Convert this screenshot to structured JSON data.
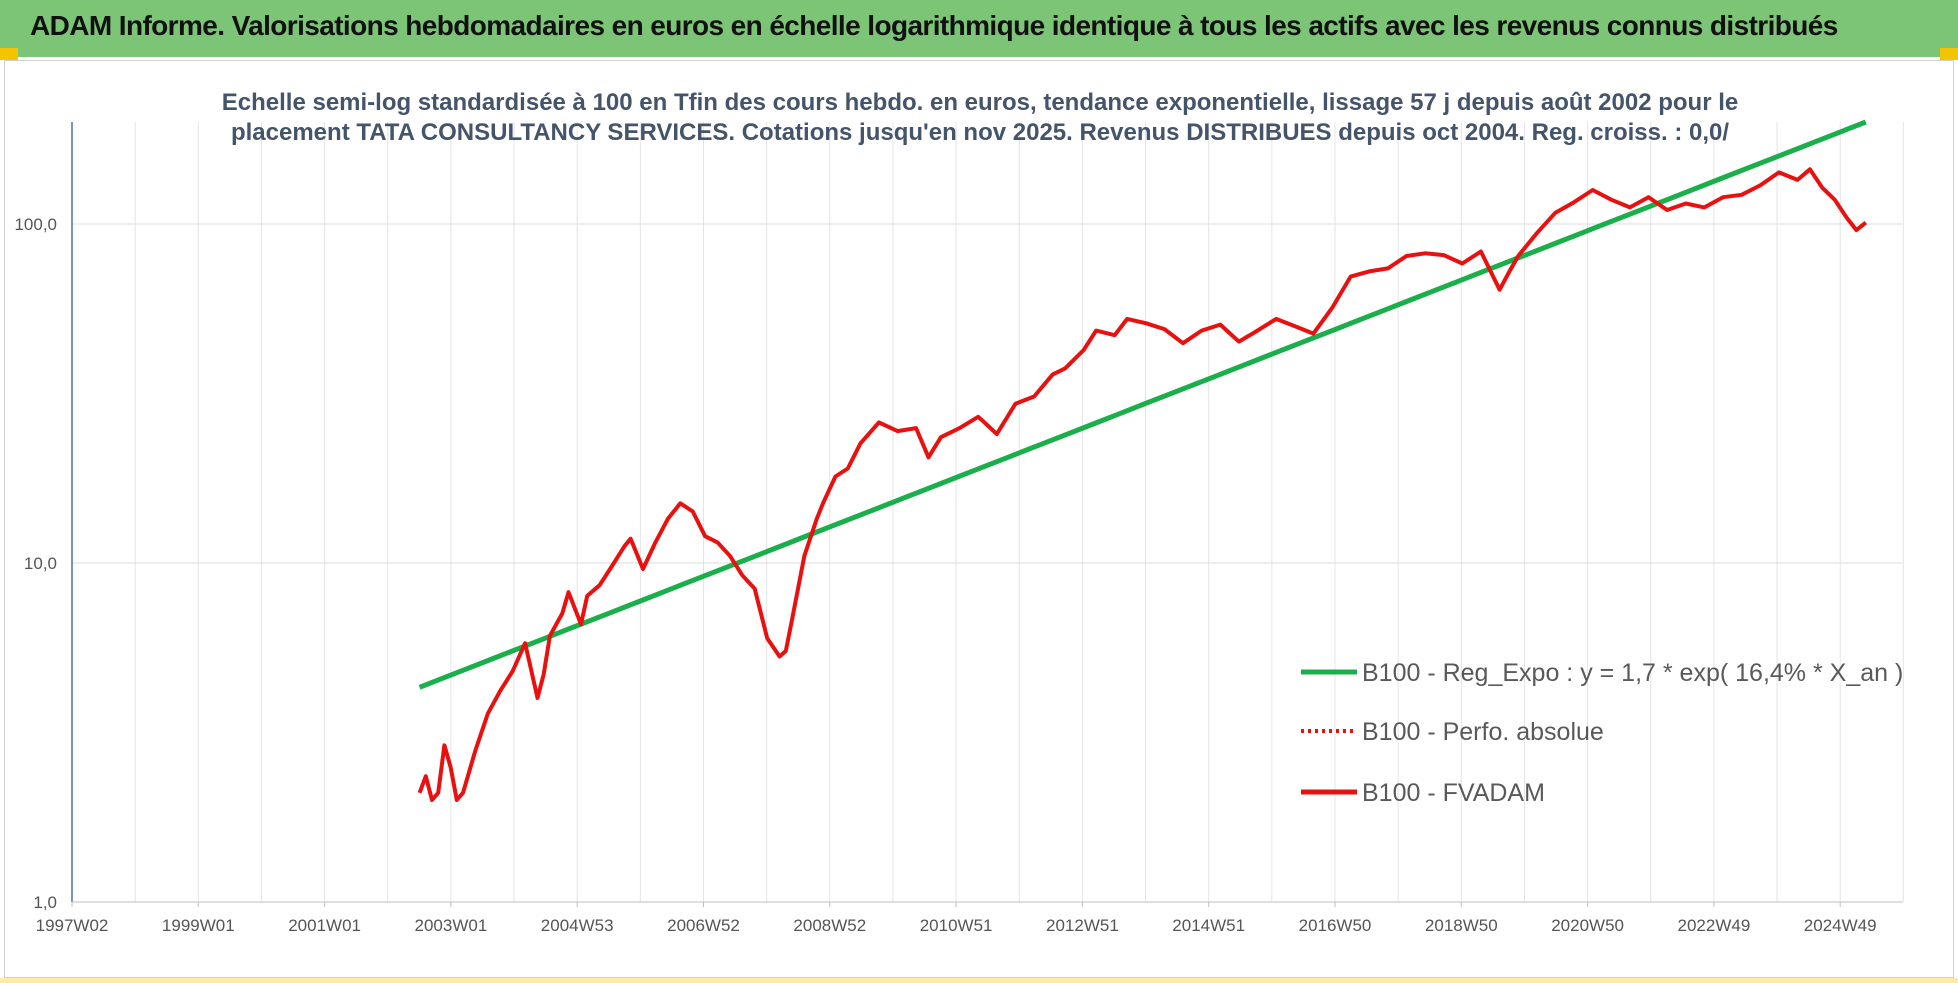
{
  "header": {
    "title": "ADAM Informe. Valorisations hebdomadaires en euros en échelle logarithmique identique à tous les actifs avec les revenus connus distribués"
  },
  "colors": {
    "header_bg": "#7cc576",
    "trend": "#1aaf4b",
    "fvadam": "#e8110f",
    "perfo": "#e8110f",
    "corner": "#f5c400"
  },
  "chart_data": {
    "type": "line",
    "title_lines": [
      "Echelle semi-log standardisée à 100 en Tfin des cours hebdo. en euros, tendance exponentielle, lissage 57 j depuis août 2002 pour le",
      "placement TATA CONSULTANCY SERVICES. Cotations jusqu'en nov 2025. Revenus DISTRIBUES depuis oct 2004. Reg. croiss. : 0,0/"
    ],
    "y_scale": "log",
    "ylim": [
      1,
      200
    ],
    "y_ticks": [
      "1,0",
      "10,0",
      "100,0"
    ],
    "x_ticks": [
      "1997W02",
      "1999W01",
      "2001W01",
      "2003W01",
      "2004W53",
      "2006W52",
      "2008W52",
      "2010W51",
      "2012W51",
      "2014W51",
      "2016W50",
      "2018W50",
      "2020W50",
      "2022W49",
      "2024W49"
    ],
    "x_range": [
      1997.0,
      2026.5
    ],
    "grid": true,
    "legend_position": "bottom-right",
    "series": [
      {
        "name": "B100 - Reg_Expo : y = 1,7 * exp( 16,4% *  X_an )",
        "style": "solid",
        "color": "#1aaf4b",
        "x": [
          2002.6,
          2025.9
        ],
        "y": [
          4.3,
          200
        ]
      },
      {
        "name": "B100 - Perfo. absolue",
        "style": "dotted",
        "color": "#e8110f",
        "x": [],
        "y": []
      },
      {
        "name": "B100 - FVADAM",
        "style": "solid",
        "color": "#e8110f",
        "x": [
          2002.6,
          2002.7,
          2002.8,
          2002.9,
          2003.0,
          2003.1,
          2003.2,
          2003.3,
          2003.5,
          2003.7,
          2003.9,
          2004.1,
          2004.3,
          2004.5,
          2004.6,
          2004.7,
          2004.9,
          2005.0,
          2005.2,
          2005.3,
          2005.5,
          2005.7,
          2005.9,
          2006.0,
          2006.2,
          2006.4,
          2006.6,
          2006.8,
          2007.0,
          2007.2,
          2007.4,
          2007.6,
          2007.8,
          2008.0,
          2008.2,
          2008.4,
          2008.5,
          2008.6,
          2008.8,
          2009.0,
          2009.1,
          2009.3,
          2009.5,
          2009.7,
          2010.0,
          2010.3,
          2010.6,
          2010.8,
          2011.0,
          2011.3,
          2011.6,
          2011.7,
          2011.9,
          2012.2,
          2012.5,
          2012.8,
          2013.0,
          2013.3,
          2013.5,
          2013.8,
          2014.0,
          2014.3,
          2014.6,
          2014.9,
          2015.2,
          2015.5,
          2015.8,
          2016.1,
          2016.4,
          2016.7,
          2017.0,
          2017.3,
          2017.6,
          2017.9,
          2018.2,
          2018.5,
          2018.8,
          2019.1,
          2019.4,
          2019.7,
          2020.0,
          2020.15,
          2020.3,
          2020.6,
          2020.9,
          2021.2,
          2021.5,
          2021.8,
          2022.1,
          2022.4,
          2022.7,
          2023.0,
          2023.3,
          2023.6,
          2023.9,
          2024.2,
          2024.5,
          2024.8,
          2025.0,
          2025.2,
          2025.4,
          2025.6,
          2025.75,
          2025.9
        ],
        "y": [
          2.1,
          2.35,
          2.0,
          2.1,
          2.9,
          2.5,
          2.0,
          2.1,
          2.8,
          3.6,
          4.2,
          4.8,
          5.8,
          4.0,
          4.7,
          6.1,
          7.1,
          8.2,
          6.6,
          8.0,
          8.6,
          9.8,
          11.2,
          11.8,
          9.6,
          11.5,
          13.5,
          15.0,
          14.2,
          12.0,
          11.5,
          10.5,
          9.2,
          8.4,
          6.0,
          5.3,
          5.5,
          6.8,
          10.5,
          13.5,
          15.0,
          18.0,
          19.0,
          22.5,
          26.0,
          24.5,
          25.0,
          20.5,
          23.5,
          25.0,
          27.0,
          26.0,
          24.0,
          29.5,
          31.0,
          36.0,
          37.5,
          42.5,
          48.5,
          47.0,
          52.5,
          51.0,
          49.0,
          44.5,
          48.5,
          50.5,
          45.0,
          48.5,
          52.5,
          50.0,
          47.5,
          56.5,
          70.0,
          72.5,
          74.0,
          80.5,
          82.0,
          81.0,
          76.5,
          83.0,
          64.0,
          72.0,
          80.5,
          94.0,
          108.0,
          116.0,
          126.0,
          118.0,
          112.0,
          120.0,
          110.0,
          115.0,
          112.0,
          120.0,
          122.0,
          130.0,
          142.0,
          135.0,
          145.0,
          128.0,
          118.0,
          104.0,
          96.0,
          101.0
        ]
      }
    ]
  }
}
